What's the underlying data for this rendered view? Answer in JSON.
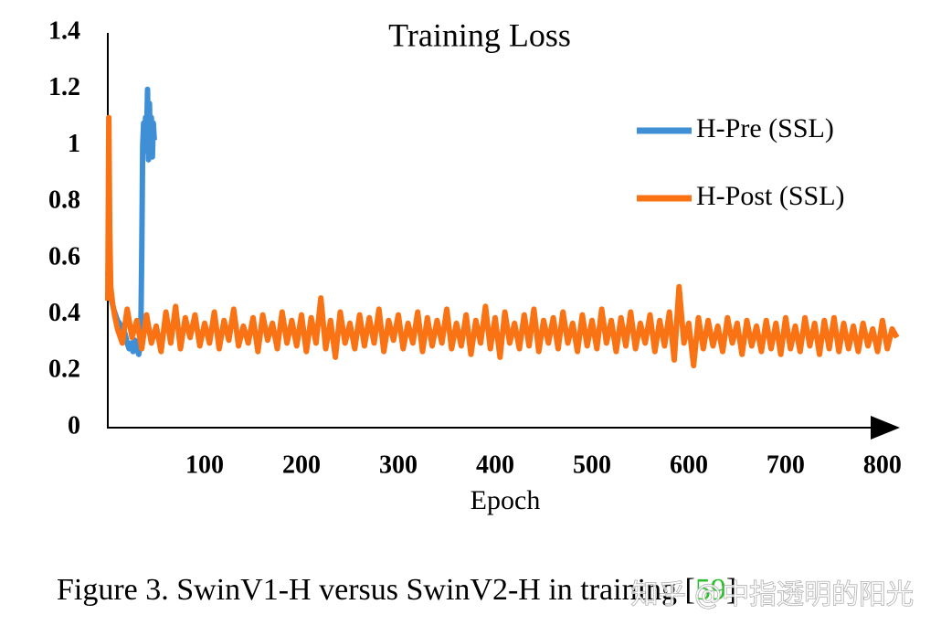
{
  "chart_data": {
    "type": "line",
    "title": "Training Loss",
    "x_label": "Epoch",
    "xlim": [
      0,
      818
    ],
    "ylim": [
      0,
      1.4
    ],
    "xticks": [
      100,
      200,
      300,
      400,
      500,
      600,
      700,
      800
    ],
    "yticks": [
      0,
      0.2,
      0.4,
      0.6,
      0.8,
      1,
      1.2,
      1.4
    ],
    "grid": false,
    "legend": "right",
    "series": [
      {
        "name": "H-Pre (SSL)",
        "color": "#3e8fd6",
        "x": [
          0,
          2,
          4,
          6,
          8,
          10,
          12,
          14,
          16,
          18,
          20,
          22,
          24,
          26,
          28,
          30,
          32,
          34,
          35,
          36,
          37,
          38,
          39,
          40,
          41,
          42,
          43,
          44,
          45,
          46,
          47,
          48
        ],
        "values": [
          0.55,
          0.5,
          0.45,
          0.42,
          0.4,
          0.38,
          0.37,
          0.36,
          0.35,
          0.33,
          0.3,
          0.28,
          0.3,
          0.27,
          0.31,
          0.28,
          0.26,
          0.3,
          0.6,
          1.0,
          1.08,
          0.98,
          1.1,
          1.02,
          1.2,
          0.95,
          1.15,
          1.0,
          1.1,
          0.96,
          1.08,
          1.02
        ]
      },
      {
        "name": "H-Post (SSL)",
        "color": "#f97314",
        "x": [
          0,
          1,
          2,
          3,
          5,
          7,
          10,
          15,
          20,
          25,
          30,
          35,
          40,
          45,
          50,
          55,
          60,
          65,
          70,
          75,
          80,
          85,
          90,
          95,
          100,
          105,
          110,
          115,
          120,
          125,
          130,
          135,
          140,
          145,
          150,
          155,
          160,
          165,
          170,
          175,
          180,
          185,
          190,
          195,
          200,
          205,
          210,
          215,
          220,
          225,
          230,
          235,
          240,
          245,
          250,
          255,
          260,
          265,
          270,
          275,
          280,
          285,
          290,
          295,
          300,
          305,
          310,
          315,
          320,
          325,
          330,
          335,
          340,
          345,
          350,
          355,
          360,
          365,
          370,
          375,
          380,
          385,
          390,
          395,
          400,
          405,
          410,
          415,
          420,
          425,
          430,
          435,
          440,
          445,
          450,
          455,
          460,
          465,
          470,
          475,
          480,
          485,
          490,
          495,
          500,
          505,
          510,
          515,
          520,
          525,
          530,
          535,
          540,
          545,
          550,
          555,
          560,
          565,
          570,
          575,
          580,
          585,
          590,
          595,
          600,
          605,
          610,
          615,
          620,
          625,
          630,
          635,
          640,
          645,
          650,
          655,
          660,
          665,
          670,
          675,
          680,
          685,
          690,
          695,
          700,
          705,
          710,
          715,
          720,
          725,
          730,
          735,
          740,
          745,
          750,
          755,
          760,
          765,
          770,
          775,
          780,
          785,
          790,
          795,
          800,
          805,
          810,
          815
        ],
        "values": [
          0.45,
          1.1,
          0.7,
          0.5,
          0.44,
          0.4,
          0.35,
          0.3,
          0.42,
          0.32,
          0.38,
          0.28,
          0.4,
          0.3,
          0.36,
          0.27,
          0.41,
          0.3,
          0.43,
          0.28,
          0.39,
          0.32,
          0.4,
          0.29,
          0.37,
          0.3,
          0.41,
          0.28,
          0.38,
          0.31,
          0.42,
          0.29,
          0.36,
          0.3,
          0.39,
          0.27,
          0.4,
          0.31,
          0.37,
          0.28,
          0.41,
          0.3,
          0.38,
          0.29,
          0.4,
          0.27,
          0.39,
          0.3,
          0.46,
          0.28,
          0.38,
          0.25,
          0.41,
          0.3,
          0.37,
          0.28,
          0.4,
          0.29,
          0.39,
          0.3,
          0.42,
          0.27,
          0.38,
          0.31,
          0.4,
          0.28,
          0.37,
          0.3,
          0.41,
          0.27,
          0.39,
          0.29,
          0.38,
          0.3,
          0.42,
          0.28,
          0.37,
          0.29,
          0.4,
          0.26,
          0.38,
          0.3,
          0.43,
          0.28,
          0.39,
          0.25,
          0.41,
          0.3,
          0.37,
          0.28,
          0.4,
          0.29,
          0.42,
          0.27,
          0.38,
          0.3,
          0.39,
          0.28,
          0.41,
          0.3,
          0.37,
          0.27,
          0.4,
          0.29,
          0.38,
          0.28,
          0.42,
          0.3,
          0.38,
          0.27,
          0.39,
          0.29,
          0.41,
          0.28,
          0.37,
          0.3,
          0.4,
          0.27,
          0.38,
          0.29,
          0.41,
          0.24,
          0.5,
          0.3,
          0.37,
          0.22,
          0.39,
          0.28,
          0.38,
          0.29,
          0.36,
          0.27,
          0.39,
          0.3,
          0.37,
          0.26,
          0.38,
          0.29,
          0.36,
          0.27,
          0.38,
          0.28,
          0.37,
          0.26,
          0.39,
          0.28,
          0.36,
          0.27,
          0.39,
          0.29,
          0.37,
          0.26,
          0.38,
          0.28,
          0.39,
          0.27,
          0.37,
          0.28,
          0.36,
          0.27,
          0.37,
          0.29,
          0.35,
          0.27,
          0.38,
          0.28,
          0.35,
          0.32
        ]
      }
    ]
  },
  "caption": {
    "text": "Figure 3. SwinV1-H versus SwinV2-H in training [",
    "ref": "59",
    "close": "]"
  },
  "watermark": "知乎 @中指透明的阳光"
}
